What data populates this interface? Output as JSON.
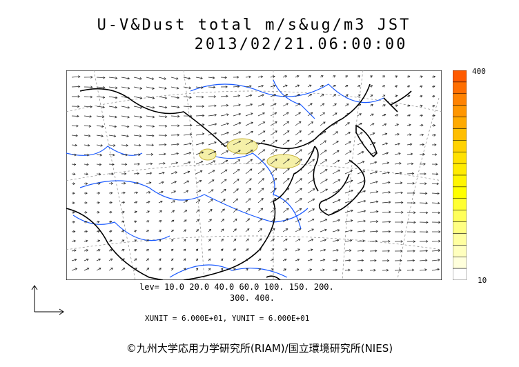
{
  "title": {
    "line1": "U-V&Dust total m/s&ug/m3 JST",
    "line2": "2013/02/21.06:00:00"
  },
  "colorbar": {
    "max_label": "400",
    "min_label": "10",
    "colors": [
      "#ff5a00",
      "#ff6e00",
      "#ff8200",
      "#ff9600",
      "#ffaa00",
      "#ffbe00",
      "#ffd200",
      "#ffe100",
      "#ffeb00",
      "#fff500",
      "#ffff00",
      "#ffff32",
      "#ffff5a",
      "#ffff82",
      "#ffffa0",
      "#ffffbe",
      "#ffffdc",
      "#ffffff"
    ]
  },
  "levels": {
    "line1": "lev= 10.0 20.0 40.0 60.0 100. 150. 200.",
    "line2": "300. 400."
  },
  "units": "XUNIT = 6.000E+01, YUNIT = 6.000E+01",
  "copyright": "©九州大学応用力学研究所(RIAM)/国立環境研究所(NIES)",
  "map_colors": {
    "river": "#1a5aff",
    "coast": "#000000",
    "dust_fill": "#f5f0a8",
    "dust_edge": "#c8b43c",
    "grid": "#888888"
  }
}
